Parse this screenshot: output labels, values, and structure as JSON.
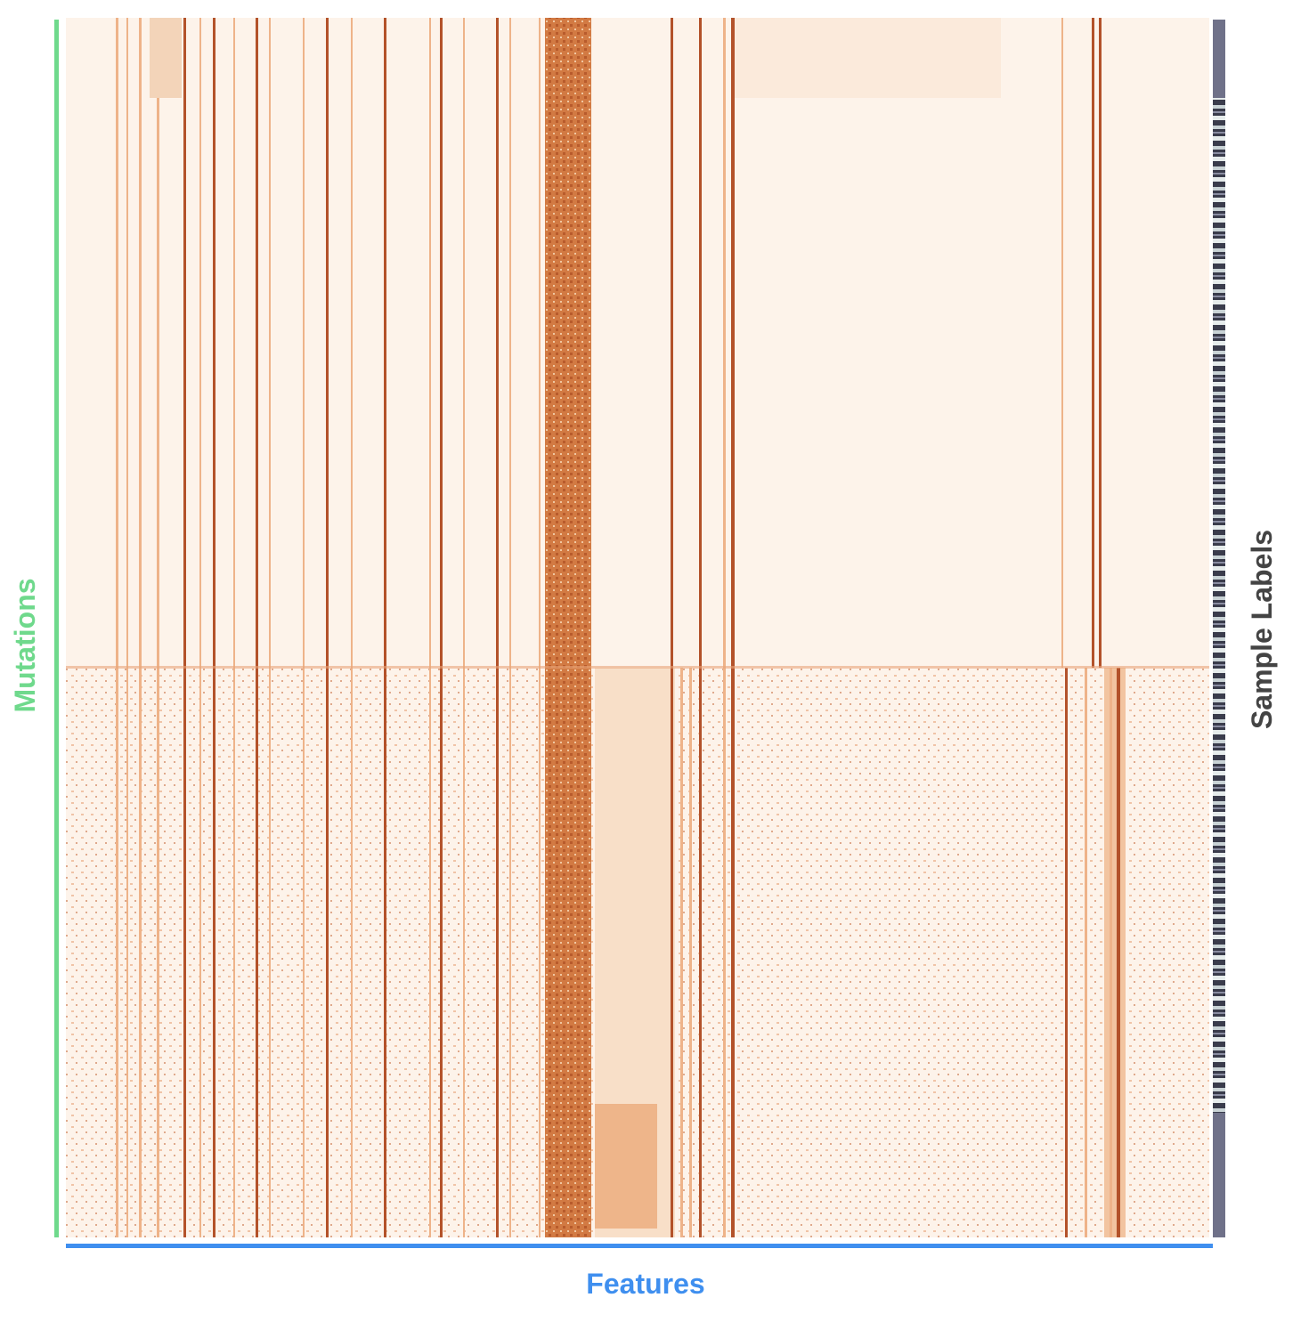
{
  "figure": {
    "y_label": "Mutations",
    "x_label": "Features",
    "side_label": "Sample Labels"
  }
}
